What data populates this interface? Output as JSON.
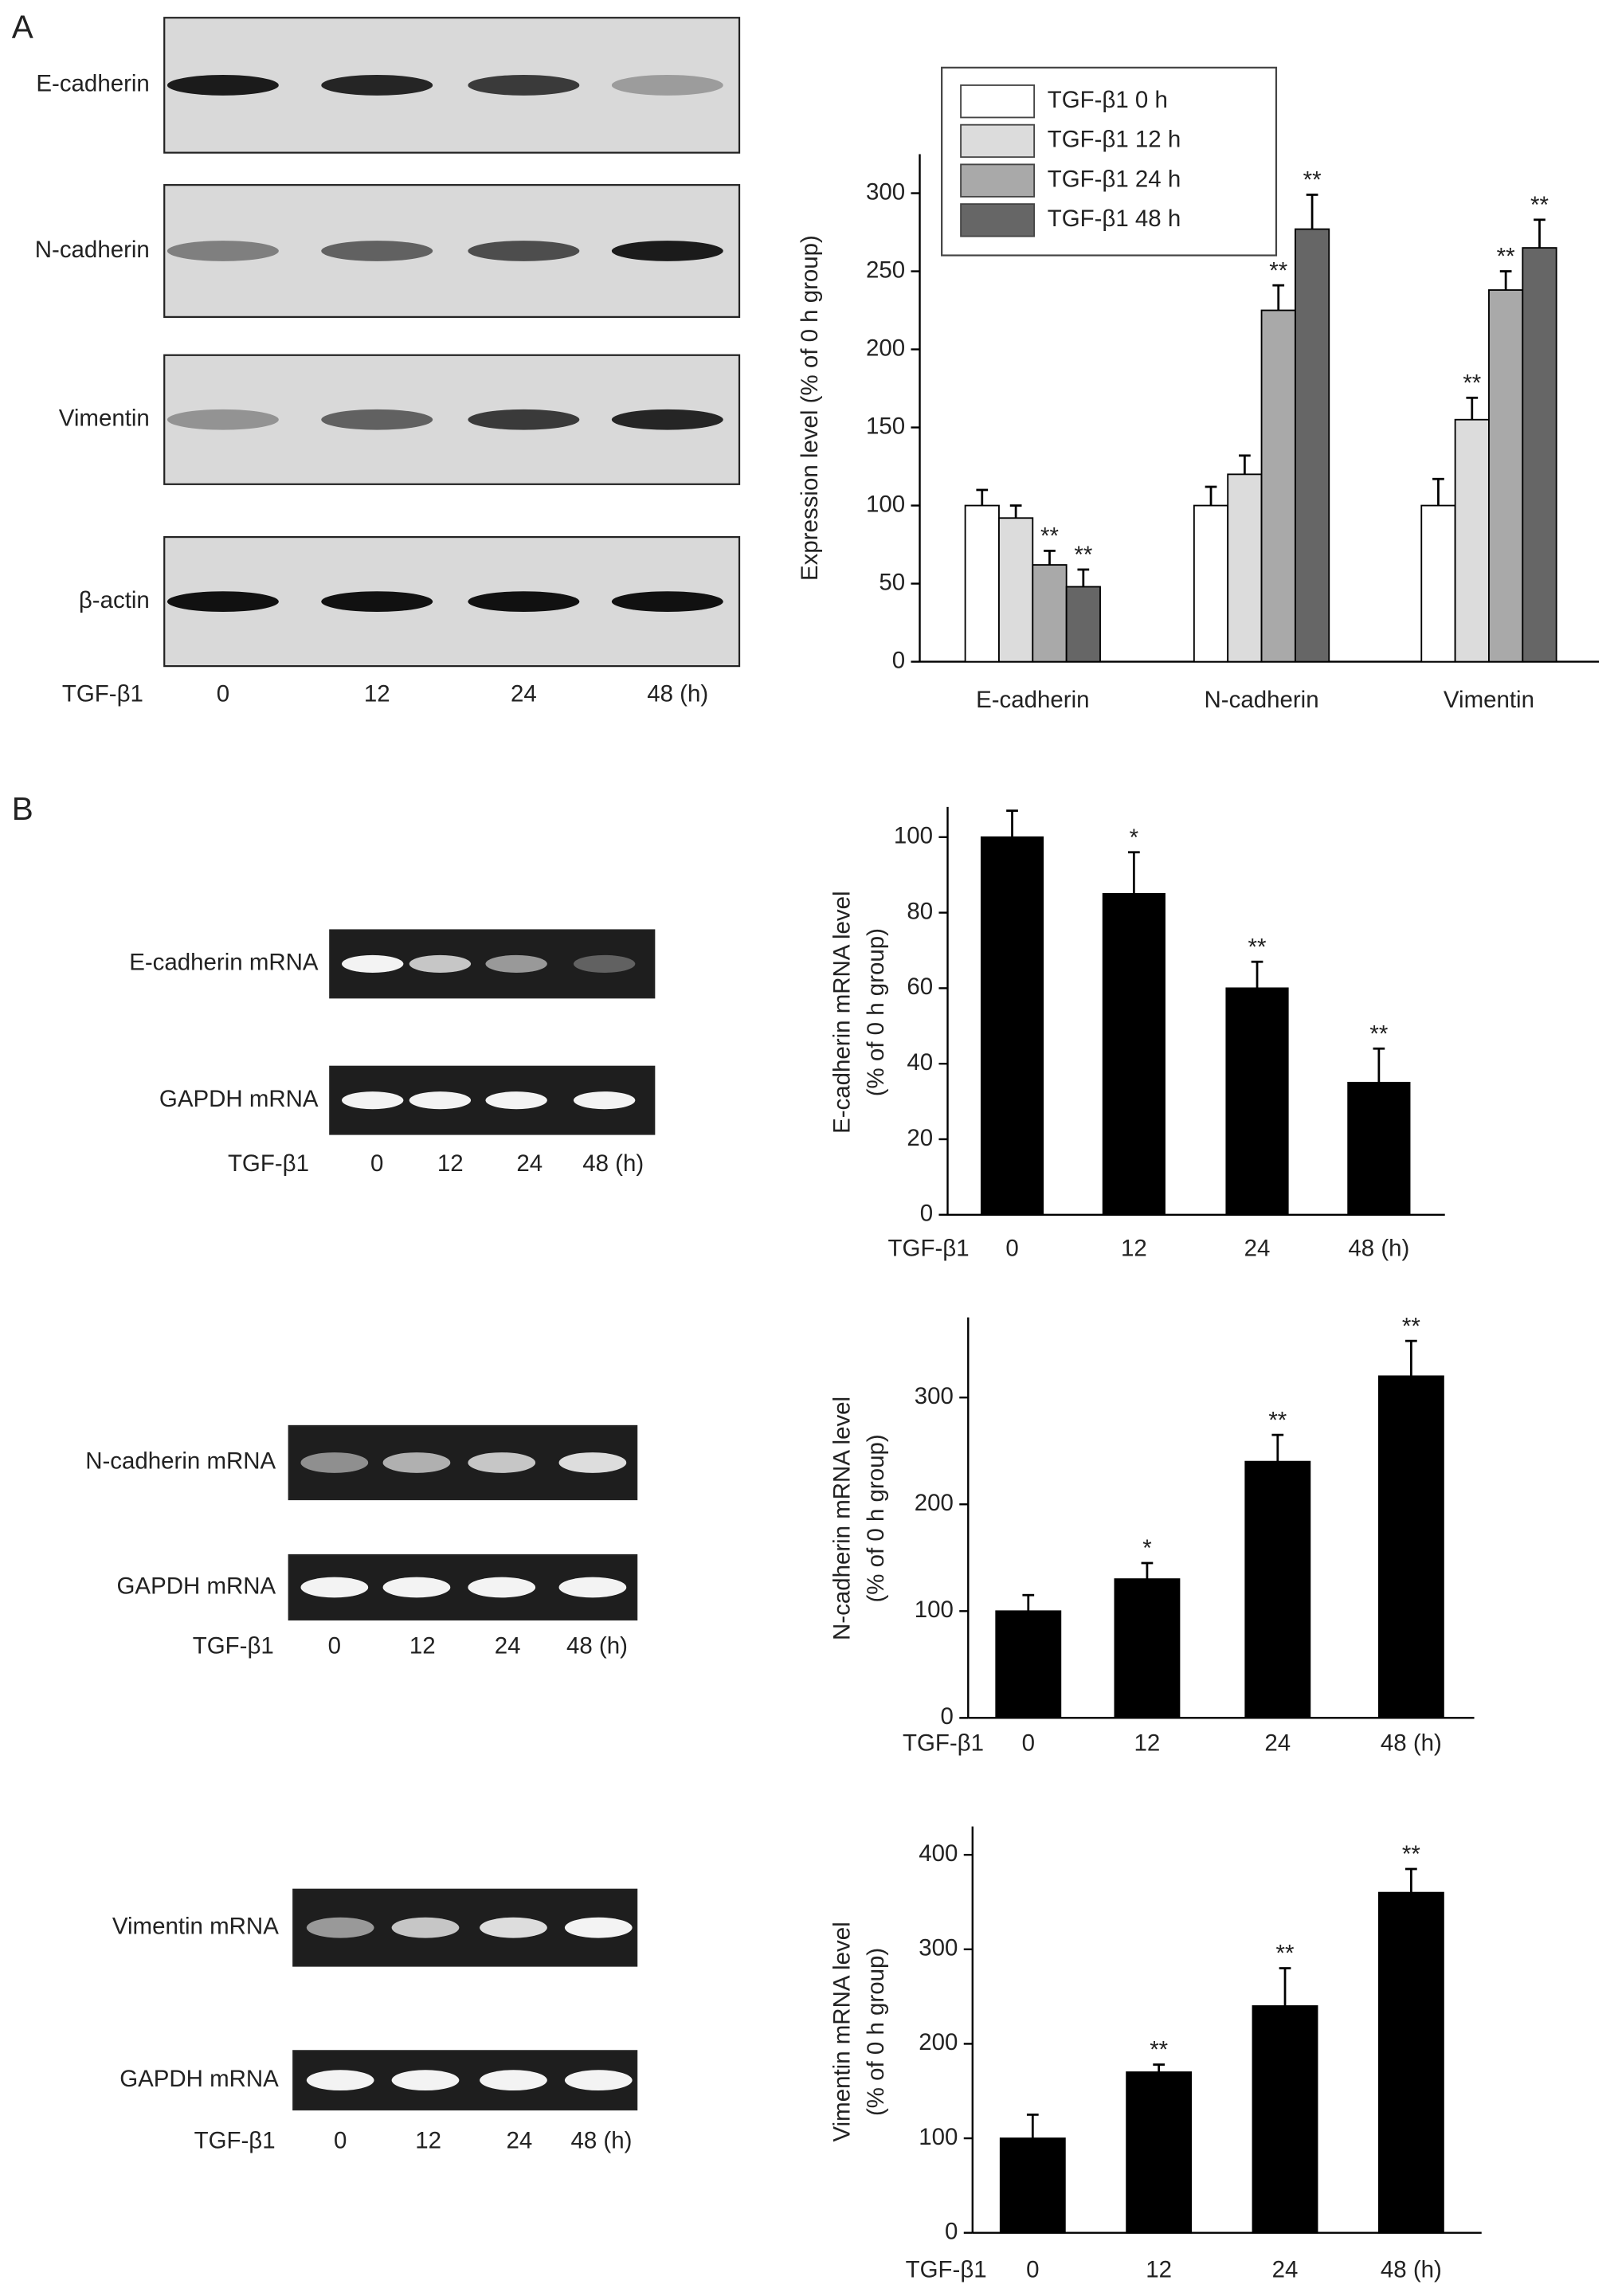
{
  "panels": [
    "A",
    "B"
  ],
  "blots": [
    {
      "rows": [
        "E-cadherin",
        "N-cadherin",
        "Vimentin",
        "β-actin"
      ],
      "lane_title": "TGF-β1",
      "lanes": [
        "0",
        "12",
        "24",
        "48 (h)"
      ]
    },
    {
      "rows": [
        "E-cadherin mRNA",
        "GAPDH mRNA"
      ],
      "lane_title": "TGF-β1",
      "lanes": [
        "0",
        "12",
        "24",
        "48 (h)"
      ]
    },
    {
      "rows": [
        "N-cadherin mRNA",
        "GAPDH mRNA"
      ],
      "lane_title": "TGF-β1",
      "lanes": [
        "0",
        "12",
        "24",
        "48 (h)"
      ]
    },
    {
      "rows": [
        "Vimentin mRNA",
        "GAPDH mRNA"
      ],
      "lane_title": "TGF-β1",
      "lanes": [
        "0",
        "12",
        "24",
        "48 (h)"
      ]
    }
  ],
  "chart_data": [
    {
      "type": "grouped_bar",
      "ylabel": [
        "Expression level (% of 0 h group)"
      ],
      "categories": [
        "E-cadherin",
        "N-cadherin",
        "Vimentin"
      ],
      "series": [
        {
          "name": "TGF-β1 0 h",
          "color": "#ffffff",
          "values": [
            100,
            100,
            100
          ],
          "errors": [
            10,
            12,
            17
          ],
          "annotations": [
            null,
            null,
            null
          ]
        },
        {
          "name": "TGF-β1 12 h",
          "color": "#dcdcdc",
          "values": [
            92,
            120,
            155
          ],
          "errors": [
            8,
            12,
            14
          ],
          "annotations": [
            null,
            null,
            "**"
          ]
        },
        {
          "name": "TGF-β1 24 h",
          "color": "#a9a9a9",
          "values": [
            62,
            225,
            238
          ],
          "errors": [
            9,
            16,
            12
          ],
          "annotations": [
            "**",
            "**",
            "**"
          ]
        },
        {
          "name": "TGF-β1 48 h",
          "color": "#666666",
          "values": [
            48,
            277,
            265
          ],
          "errors": [
            11,
            22,
            18
          ],
          "annotations": [
            "**",
            "**",
            "**"
          ]
        }
      ],
      "ylim": [
        0,
        325
      ],
      "yticks": [
        0,
        50,
        100,
        150,
        200,
        250,
        300
      ],
      "legend": "top-left"
    },
    {
      "type": "bar",
      "ylabel": [
        "E-cadherin mRNA level",
        "(% of 0 h group)"
      ],
      "xlabel": "TGF-β1",
      "categories": [
        "0",
        "12",
        "24",
        "48 (h)"
      ],
      "values": [
        100,
        85,
        60,
        35
      ],
      "errors": [
        7,
        11,
        7,
        9
      ],
      "annotations": [
        null,
        "*",
        "**",
        "**"
      ],
      "color": "#000000",
      "ylim": [
        0,
        108
      ],
      "yticks": [
        0,
        20,
        40,
        60,
        80,
        100
      ]
    },
    {
      "type": "bar",
      "ylabel": [
        "N-cadherin mRNA level",
        "(% of 0 h group)"
      ],
      "xlabel": "TGF-β1",
      "categories": [
        "0",
        "12",
        "24",
        "48 (h)"
      ],
      "values": [
        100,
        130,
        240,
        320
      ],
      "errors": [
        15,
        15,
        25,
        33
      ],
      "annotations": [
        null,
        "*",
        "**",
        "**"
      ],
      "color": "#000000",
      "ylim": [
        0,
        375
      ],
      "yticks": [
        0,
        100,
        200,
        300
      ]
    },
    {
      "type": "bar",
      "ylabel": [
        "Vimentin mRNA level",
        "(% of 0 h group)"
      ],
      "xlabel": "TGF-β1",
      "categories": [
        "0",
        "12",
        "24",
        "48 (h)"
      ],
      "values": [
        100,
        170,
        240,
        360
      ],
      "errors": [
        25,
        8,
        40,
        25
      ],
      "annotations": [
        null,
        "**",
        "**",
        "**"
      ],
      "color": "#000000",
      "ylim": [
        0,
        430
      ],
      "yticks": [
        0,
        100,
        200,
        300,
        400
      ]
    }
  ]
}
